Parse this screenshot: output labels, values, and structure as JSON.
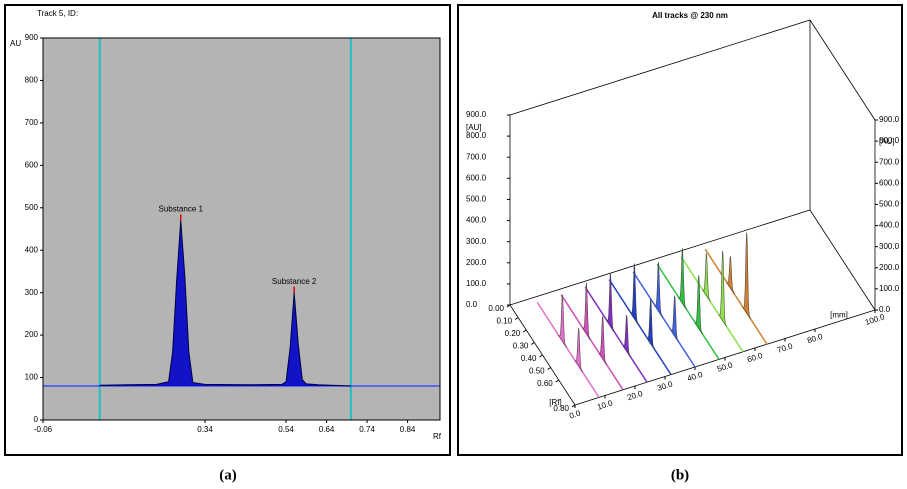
{
  "panel_labels": [
    "(a)",
    "(b)"
  ],
  "chart_data": [
    {
      "type": "densitogram",
      "title": "Track 5, ID:",
      "ylabel": "AU",
      "xlabel": "Rf",
      "xlim": [
        -0.06,
        0.92
      ],
      "xticks": [
        -0.06,
        0.34,
        0.54,
        0.64,
        0.74,
        0.84
      ],
      "ylim": [
        0,
        900
      ],
      "yticks": [
        0,
        100,
        200,
        300,
        400,
        500,
        600,
        700,
        800,
        900
      ],
      "markers": [
        0.08,
        0.7
      ],
      "baseline": 80,
      "series": [
        {
          "color": "#0000c8",
          "x": [
            0.08,
            0.15,
            0.22,
            0.25,
            0.26,
            0.27,
            0.28,
            0.29,
            0.3,
            0.31,
            0.34,
            0.45,
            0.53,
            0.54,
            0.55,
            0.56,
            0.57,
            0.58,
            0.59,
            0.62,
            0.7
          ],
          "values": [
            82,
            83,
            84,
            90,
            160,
            330,
            470,
            340,
            160,
            88,
            84,
            83,
            84,
            90,
            170,
            300,
            180,
            95,
            85,
            83,
            80
          ]
        }
      ],
      "annotations": [
        {
          "text": "Substance 1",
          "x": 0.28,
          "y": 470
        },
        {
          "text": "Substance 2",
          "x": 0.56,
          "y": 300
        }
      ]
    },
    {
      "type": "tracks-3d",
      "title": "All tracks @ 230 nm",
      "zlabel": "[AU]",
      "xlabel": "[Rf]",
      "ylabel": "[mm]",
      "xlim": [
        0,
        0.8
      ],
      "ylim": [
        0,
        100
      ],
      "zlim": [
        0,
        900
      ],
      "xticks": [
        {
          "value": 0,
          "label": "0.00"
        },
        {
          "value": 0.1,
          "label": "0.10"
        },
        {
          "value": 0.2,
          "label": "0.20"
        },
        {
          "value": 0.3,
          "label": "0.30"
        },
        {
          "value": 0.4,
          "label": "0.40"
        },
        {
          "value": 0.5,
          "label": "0.50"
        },
        {
          "value": 0.6,
          "label": "0.60"
        },
        {
          "value": 0.8,
          "label": "0.80"
        }
      ],
      "yticks": [
        {
          "value": 0,
          "label": "0.0"
        },
        {
          "value": 10,
          "label": "10.0"
        },
        {
          "value": 20,
          "label": "20.0"
        },
        {
          "value": 30,
          "label": "30.0"
        },
        {
          "value": 40,
          "label": "40.0"
        },
        {
          "value": 50,
          "label": "50.0"
        },
        {
          "value": 60,
          "label": "60.0"
        },
        {
          "value": 70,
          "label": "70.0"
        },
        {
          "value": 80,
          "label": "80.0"
        },
        {
          "value": 100,
          "label": "100.0"
        }
      ],
      "zticks": [
        {
          "value": 0,
          "label": "0.0"
        },
        {
          "value": 100,
          "label": "100.0"
        },
        {
          "value": 200,
          "label": "200.0"
        },
        {
          "value": 300,
          "label": "300.0"
        },
        {
          "value": 400,
          "label": "400.0"
        },
        {
          "value": 500,
          "label": "500.0"
        },
        {
          "value": 600,
          "label": "600.0"
        },
        {
          "value": 700,
          "label": "700.0"
        },
        {
          "value": 800,
          "label": "800.0"
        },
        {
          "value": 900,
          "label": "900.0"
        }
      ],
      "peak_rf": [
        0.35,
        0.55
      ],
      "series": [
        {
          "color": "#e070c8",
          "track_mm": 8,
          "values": [
            220,
            180
          ]
        },
        {
          "color": "#d050b8",
          "track_mm": 16,
          "values": [
            240,
            200
          ]
        },
        {
          "color": "#8030c0",
          "track_mm": 24,
          "values": [
            250,
            170
          ]
        },
        {
          "color": "#2040c0",
          "track_mm": 32,
          "values": [
            260,
            210
          ]
        },
        {
          "color": "#4060e0",
          "track_mm": 40,
          "values": [
            230,
            190
          ]
        },
        {
          "color": "#30c040",
          "track_mm": 48,
          "values": [
            260,
            250
          ]
        },
        {
          "color": "#90e050",
          "track_mm": 56,
          "values": [
            200,
            330
          ]
        },
        {
          "color": "#d08030",
          "track_mm": 64,
          "values": [
            150,
            380
          ]
        }
      ]
    }
  ]
}
